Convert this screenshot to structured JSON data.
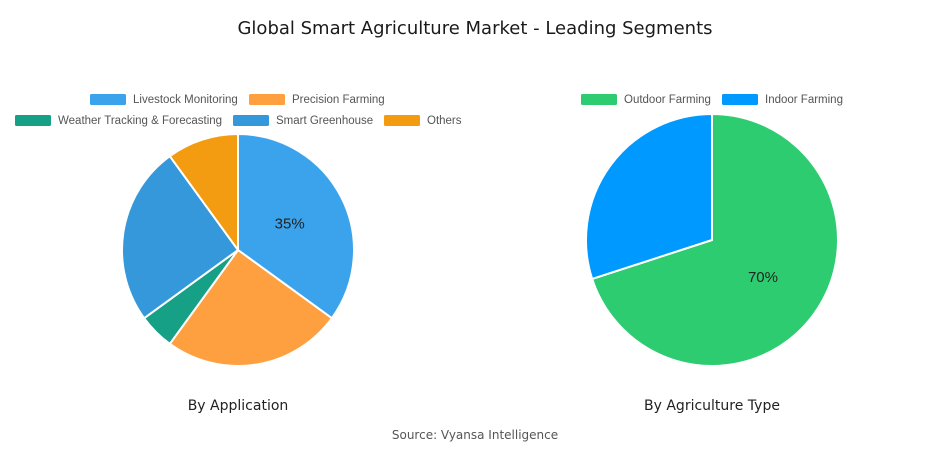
{
  "title": "Global Smart Agriculture Market - Leading Segments",
  "source": "Source: Vyansa Intelligence",
  "chart_data": [
    {
      "type": "pie",
      "title": "By Application",
      "slices": [
        {
          "label": "Livestock Monitoring",
          "value": 35,
          "color": "#3ba3ec",
          "data_label": "35%"
        },
        {
          "label": "Precision Farming",
          "value": 25,
          "color": "#ffa040",
          "data_label": ""
        },
        {
          "label": "Weather Tracking & Forecasting",
          "value": 5,
          "color": "#16a085",
          "data_label": ""
        },
        {
          "label": "Smart Greenhouse",
          "value": 25,
          "color": "#3498db",
          "data_label": ""
        },
        {
          "label": "Others",
          "value": 10,
          "color": "#f39c12",
          "data_label": ""
        }
      ]
    },
    {
      "type": "pie",
      "title": "By Agriculture Type",
      "slices": [
        {
          "label": "Outdoor Farming",
          "value": 70,
          "color": "#2ecc71",
          "data_label": "70%"
        },
        {
          "label": "Indoor Farming",
          "value": 30,
          "color": "#0099ff",
          "data_label": ""
        }
      ]
    }
  ]
}
